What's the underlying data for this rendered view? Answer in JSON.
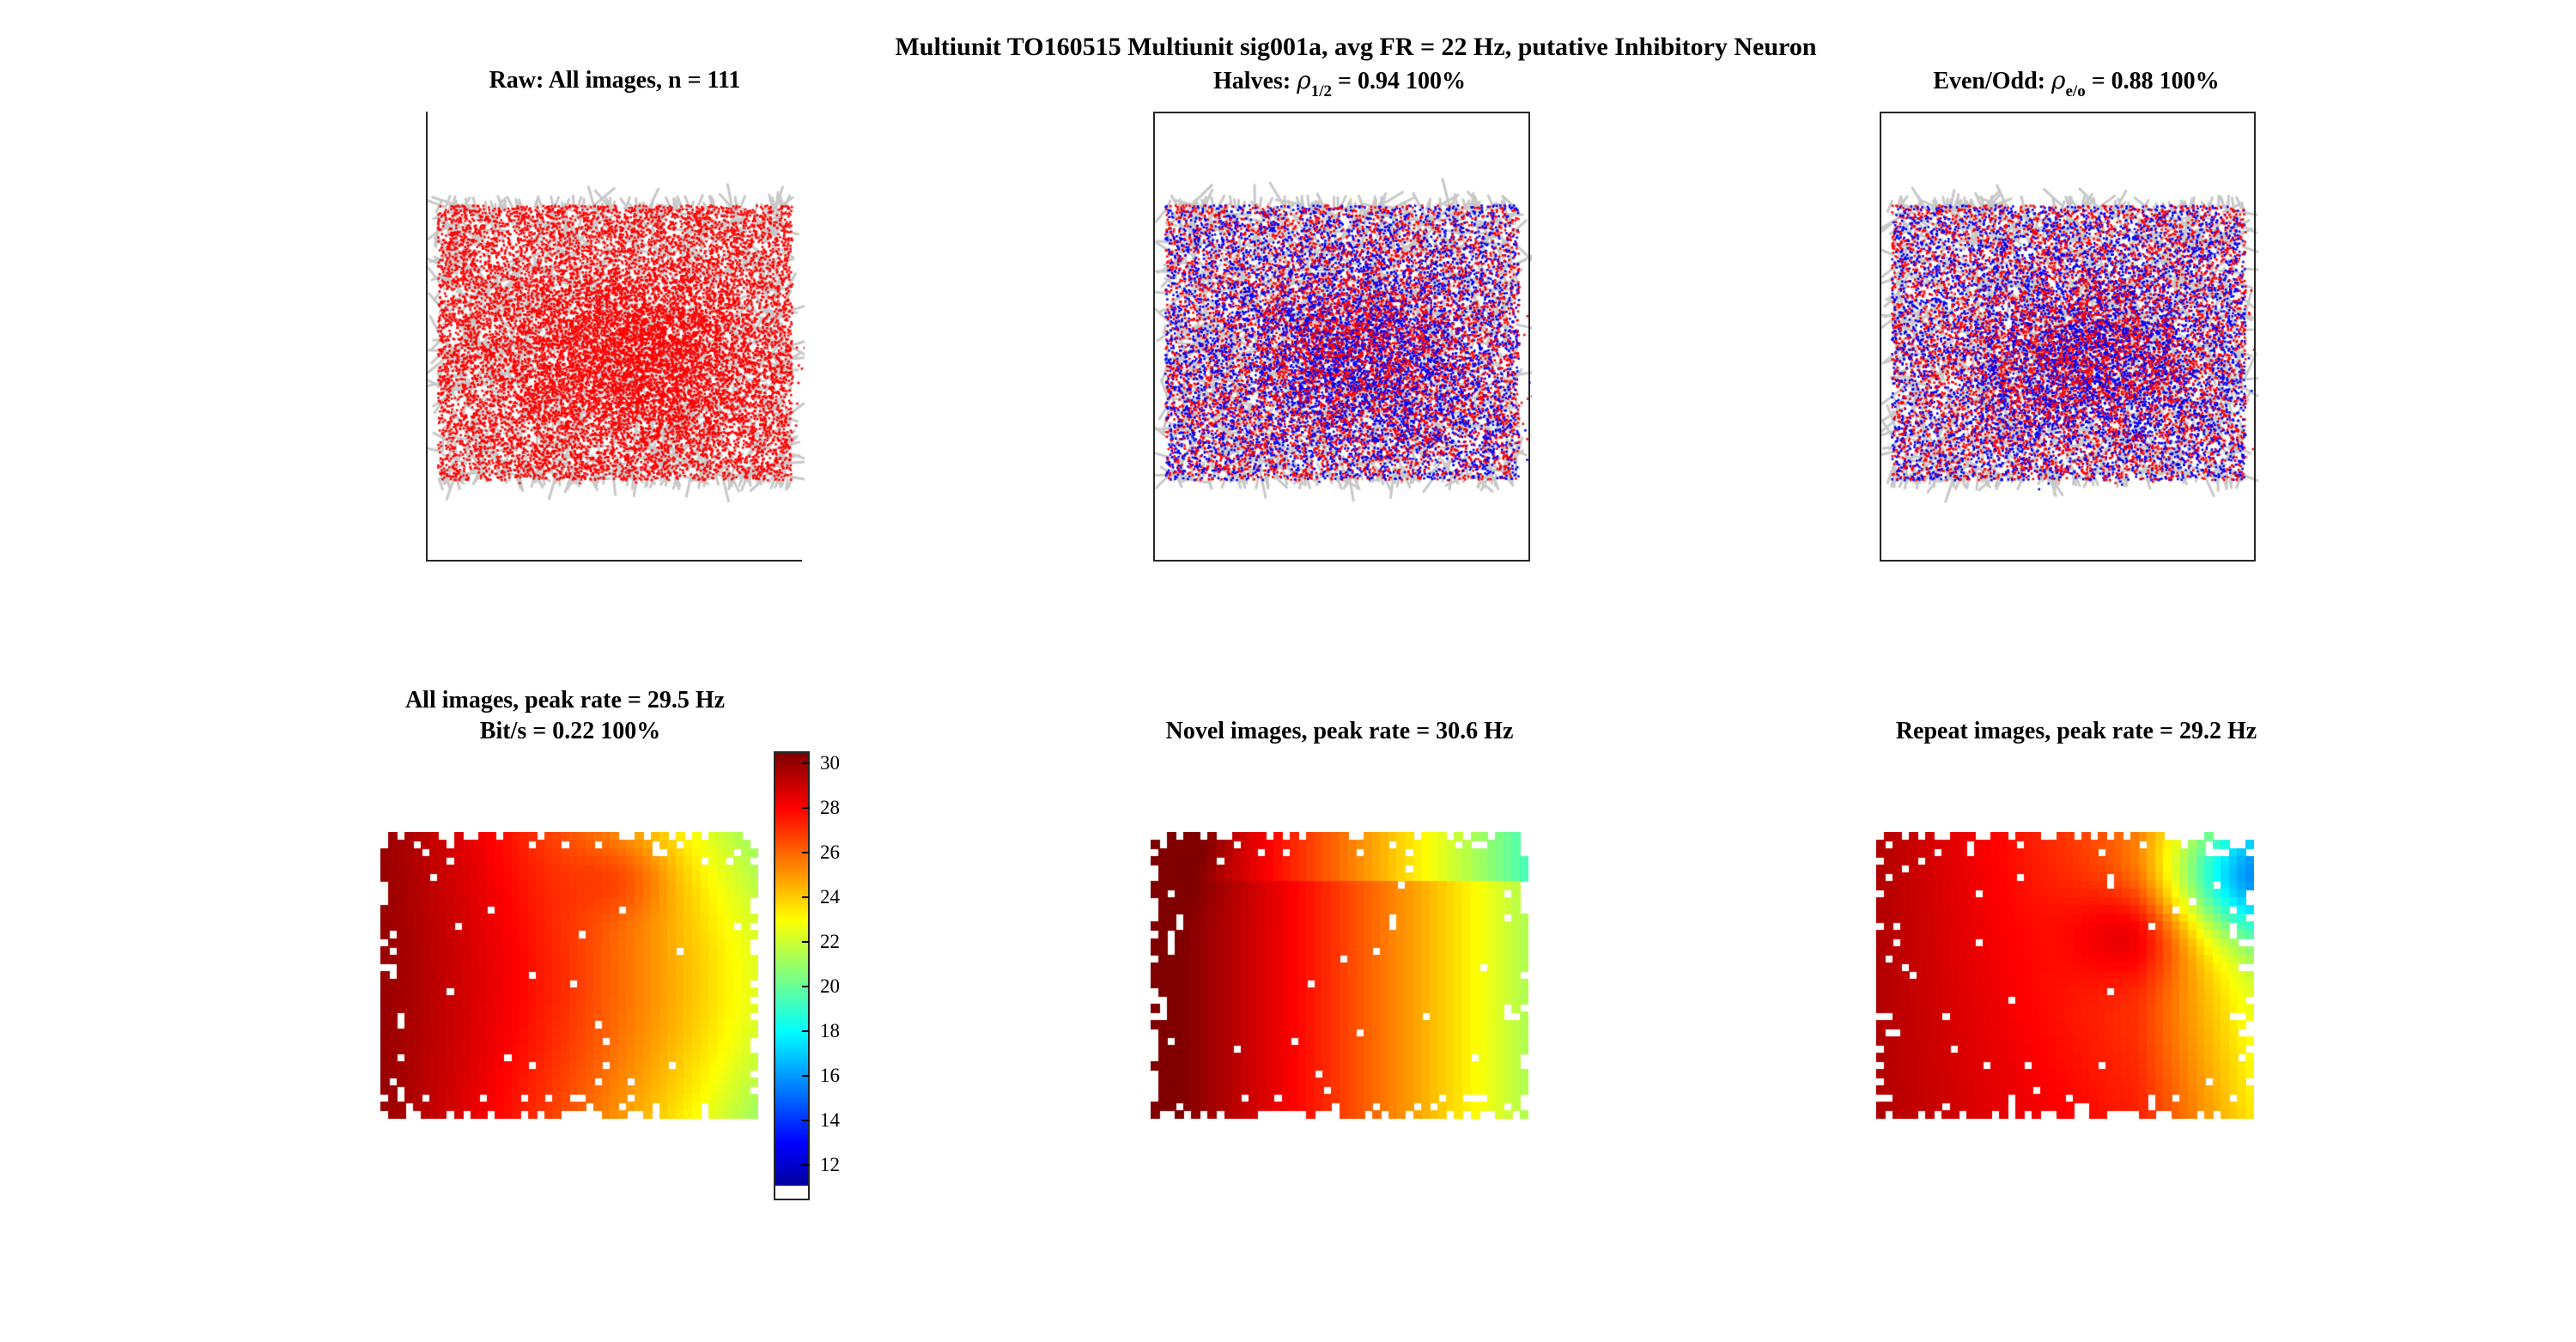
{
  "figure": {
    "title": "Multiunit TO160515 Multiunit sig001a, avg FR = 22 Hz, putative Inhibitory Neuron"
  },
  "panels": {
    "raw": {
      "title": "Raw: All images, n = 111"
    },
    "halves": {
      "title_prefix": "Halves: ",
      "rho_symbol": "ρ",
      "subscript": "1/2",
      "title_suffix": " = 0.94 100%"
    },
    "evenodd": {
      "title_prefix": "Even/Odd: ",
      "rho_symbol": "ρ",
      "subscript": "e/o",
      "title_suffix": " = 0.88 100%"
    },
    "all_map": {
      "title_line1": "All images, peak rate = 29.5 Hz",
      "title_line2": "Bit/s = 0.22 100%"
    },
    "novel_map": {
      "title": "Novel images, peak rate = 30.6 Hz"
    },
    "repeat_map": {
      "title": "Repeat images, peak rate = 29.2 Hz"
    }
  },
  "colors": {
    "trajectory": "#c8c8c8",
    "spikes_primary": "#ff0000",
    "spikes_secondary": "#0000ff"
  },
  "chart_data": [
    {
      "type": "scatter",
      "title": "Raw: All images, n = 111",
      "description_series": [
        {
          "name": "eye trajectory",
          "color": "#c8c8c8"
        },
        {
          "name": "spikes",
          "color": "#ff0000"
        }
      ],
      "axes_visible": false
    },
    {
      "type": "scatter",
      "title": "Halves: ρ1/2 = 0.94 100%",
      "series_colors": [
        "#ff0000",
        "#0000ff"
      ],
      "rho": 0.94,
      "axes_visible": false
    },
    {
      "type": "scatter",
      "title": "Even/Odd: ρe/o = 0.88 100%",
      "series_colors": [
        "#ff0000",
        "#0000ff"
      ],
      "rho": 0.88,
      "axes_visible": false
    },
    {
      "type": "heatmap",
      "title": "All images, peak rate = 29.5 Hz",
      "subtitle": "Bit/s = 0.22 100%",
      "peak_rate": 29.5,
      "colormap": "jet",
      "colorbar": {
        "min": 10.5,
        "max": 30.5,
        "ticks": [
          12,
          14,
          16,
          18,
          20,
          22,
          24,
          26,
          28,
          30
        ]
      }
    },
    {
      "type": "heatmap",
      "title": "Novel images, peak rate = 30.6 Hz",
      "peak_rate": 30.6,
      "colormap": "jet"
    },
    {
      "type": "heatmap",
      "title": "Repeat images, peak rate = 29.2 Hz",
      "peak_rate": 29.2,
      "colormap": "jet"
    }
  ]
}
